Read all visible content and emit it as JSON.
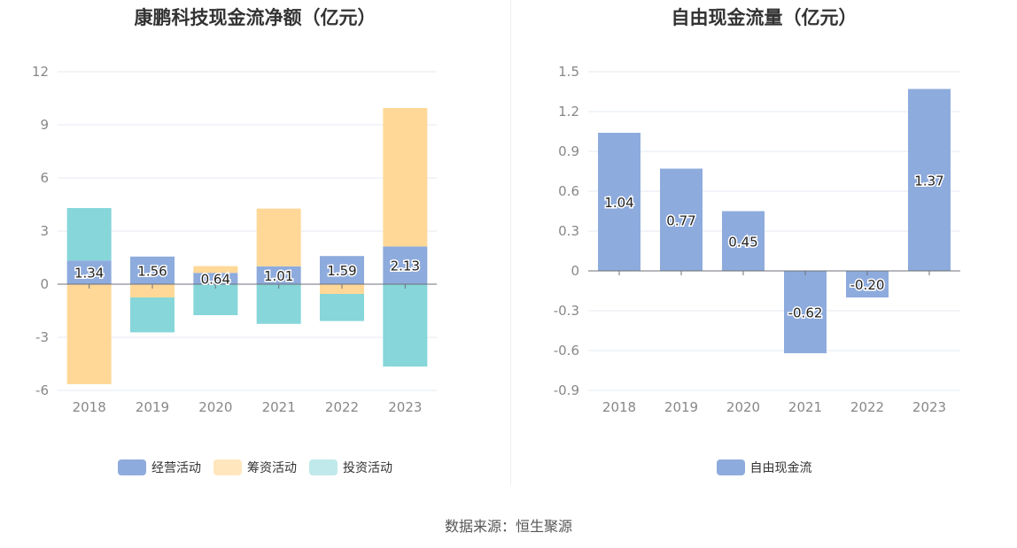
{
  "source": "数据来源：恒生聚源",
  "chart_data": [
    {
      "type": "bar",
      "stacked": true,
      "title": "康鹏科技现金流净额（亿元）",
      "categories": [
        "2018",
        "2019",
        "2020",
        "2021",
        "2022",
        "2023"
      ],
      "ylim": [
        -6,
        12
      ],
      "yticks": [
        12,
        9,
        6,
        3,
        0,
        -3,
        -6
      ],
      "grid": true,
      "legend_position": "bottom",
      "series": [
        {
          "name": "经营活动",
          "color": "#8eabdd",
          "values": [
            1.34,
            1.56,
            0.64,
            1.01,
            1.59,
            2.13
          ],
          "labels": [
            "1.34",
            "1.56",
            "0.64",
            "1.01",
            "1.59",
            "2.13"
          ]
        },
        {
          "name": "筹资活动",
          "color": "#ffd898",
          "values": [
            -5.65,
            -0.75,
            0.38,
            3.26,
            -0.55,
            7.82
          ]
        },
        {
          "name": "投资活动",
          "color": "#86d6da",
          "values": [
            2.96,
            -1.97,
            -1.75,
            -2.24,
            -1.53,
            -4.65
          ]
        }
      ],
      "legend_colors": [
        "#8eabdd",
        "#ffe6bd",
        "#c0e9eb"
      ]
    },
    {
      "type": "bar",
      "title": "自由现金流量（亿元）",
      "categories": [
        "2018",
        "2019",
        "2020",
        "2021",
        "2022",
        "2023"
      ],
      "ylim": [
        -0.9,
        1.5
      ],
      "yticks": [
        1.5,
        1.2,
        0.9,
        0.6,
        0.3,
        0,
        -0.3,
        -0.6,
        -0.9
      ],
      "grid": true,
      "legend_position": "bottom",
      "series": [
        {
          "name": "自由现金流",
          "color": "#8eabdd",
          "values": [
            1.04,
            0.77,
            0.45,
            -0.62,
            -0.2,
            1.37
          ],
          "labels": [
            "1.04",
            "0.77",
            "0.45",
            "-0.62",
            "-0.20",
            "1.37"
          ]
        }
      ]
    }
  ]
}
